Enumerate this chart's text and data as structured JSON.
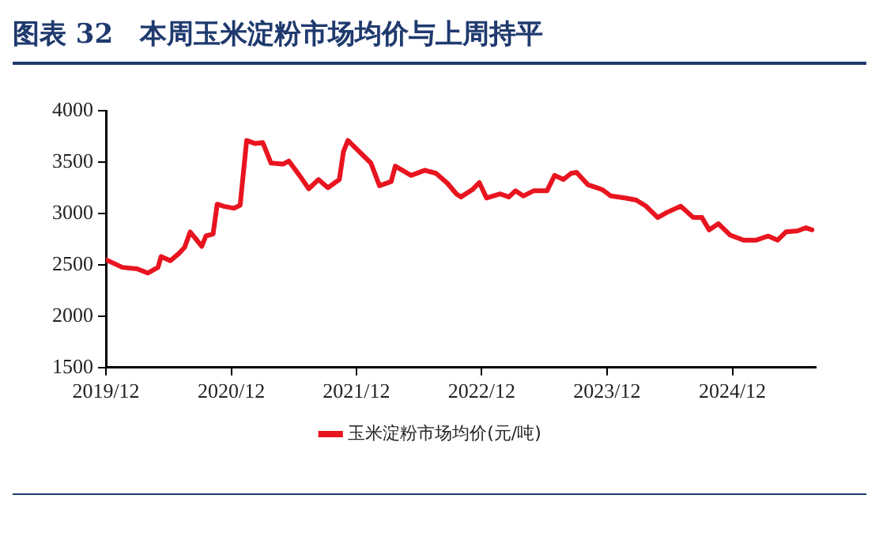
{
  "chart_data": {
    "type": "line",
    "title": "图表 32　本周玉米淀粉市场均价与上周持平",
    "series": [
      {
        "name": "玉米淀粉市场均价(元/吨)",
        "color": "#e8141f",
        "x": [
          "2019-12-01",
          "2020-01-18",
          "2020-03-01",
          "2020-04-01",
          "2020-05-01",
          "2020-05-10",
          "2020-06-06",
          "2020-07-01",
          "2020-07-18",
          "2020-08-03",
          "2020-09-06",
          "2020-09-18",
          "2020-10-09",
          "2020-10-21",
          "2020-11-09",
          "2020-12-09",
          "2020-12-27",
          "2021-01-15",
          "2021-02-09",
          "2021-03-03",
          "2021-03-27",
          "2021-05-01",
          "2021-05-18",
          "2021-06-18",
          "2021-07-15",
          "2021-08-12",
          "2021-09-09",
          "2021-10-12",
          "2021-10-24",
          "2021-11-06",
          "2022-01-12",
          "2022-02-06",
          "2022-03-12",
          "2022-03-24",
          "2022-05-09",
          "2022-06-18",
          "2022-07-21",
          "2022-08-24",
          "2022-09-18",
          "2022-10-01",
          "2022-11-03",
          "2022-11-24",
          "2022-12-15",
          "2023-01-24",
          "2023-02-18",
          "2023-03-09",
          "2023-04-01",
          "2023-05-01",
          "2023-06-09",
          "2023-07-01",
          "2023-07-27",
          "2023-08-18",
          "2023-09-03",
          "2023-10-06",
          "2023-11-01",
          "2023-11-18",
          "2023-12-12",
          "2024-01-24",
          "2024-02-24",
          "2024-03-24",
          "2024-04-27",
          "2024-05-24",
          "2024-07-03",
          "2024-08-09",
          "2024-09-03",
          "2024-09-24",
          "2024-10-21",
          "2024-11-24",
          "2025-01-03",
          "2025-02-09",
          "2025-03-15",
          "2025-04-12",
          "2025-05-06",
          "2025-06-09",
          "2025-07-03",
          "2025-07-21"
        ],
        "values": [
          2550,
          2475,
          2460,
          2420,
          2475,
          2580,
          2540,
          2610,
          2670,
          2820,
          2680,
          2780,
          2800,
          3090,
          3070,
          3050,
          3080,
          3710,
          3680,
          3690,
          3490,
          3480,
          3510,
          3370,
          3240,
          3330,
          3250,
          3330,
          3600,
          3710,
          3490,
          3270,
          3310,
          3460,
          3370,
          3420,
          3390,
          3290,
          3190,
          3160,
          3230,
          3300,
          3150,
          3190,
          3160,
          3220,
          3170,
          3220,
          3220,
          3370,
          3330,
          3390,
          3400,
          3280,
          3250,
          3230,
          3170,
          3150,
          3130,
          3070,
          2960,
          3010,
          3070,
          2960,
          2960,
          2840,
          2900,
          2790,
          2740,
          2740,
          2780,
          2740,
          2820,
          2830,
          2860,
          2840
        ]
      }
    ],
    "xlim": [
      "2019-12-01",
      "2025-08-01"
    ],
    "xticks": [
      {
        "value": "2019-12-01",
        "label": "2019/12"
      },
      {
        "value": "2020-12-01",
        "label": "2020/12"
      },
      {
        "value": "2021-12-01",
        "label": "2021/12"
      },
      {
        "value": "2022-12-01",
        "label": "2022/12"
      },
      {
        "value": "2023-12-01",
        "label": "2023/12"
      },
      {
        "value": "2024-12-01",
        "label": "2024/12"
      }
    ],
    "ylim": [
      1500,
      4000
    ],
    "yticks": [
      1500,
      2000,
      2500,
      3000,
      3500,
      4000
    ],
    "grid": false,
    "legend": "bottom",
    "marker": "none",
    "line_style": "solid"
  }
}
